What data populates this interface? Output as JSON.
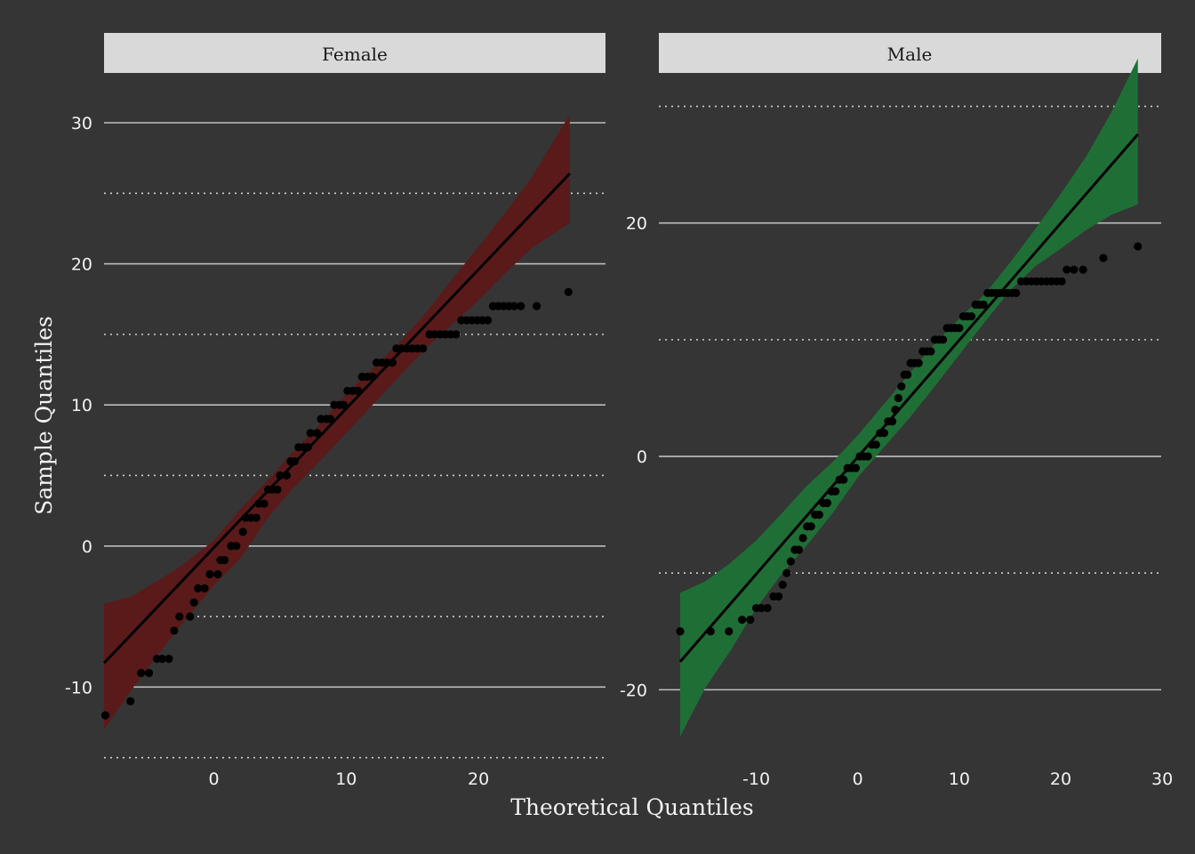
{
  "chart_data": [
    {
      "type": "scatter",
      "panel": "Female",
      "xlabel": "Theoretical Quantiles",
      "ylabel": "Sample Quantiles",
      "xlim": [
        -8.3,
        29.6
      ],
      "ylim": [
        -15.4,
        32.9
      ],
      "x_ticks": [
        0,
        10,
        20
      ],
      "y_ticks_major": [
        -10,
        0,
        10,
        20,
        30
      ],
      "y_ticks_minor": [
        -15,
        -5,
        5,
        15,
        25
      ],
      "band_color": "#5a1a1a",
      "line": {
        "x": [
          -8.3,
          26.9
        ],
        "y": [
          -8.3,
          26.4
        ]
      },
      "band_x": [
        -8.3,
        -6.3,
        -4.3,
        -2.3,
        0,
        2,
        4,
        6,
        8,
        10,
        12,
        14,
        16,
        18,
        20,
        22,
        24,
        26.9
      ],
      "band_lower": [
        -13,
        -10.3,
        -7.8,
        -5.4,
        -2.8,
        -0.9,
        1.9,
        4.1,
        6.0,
        8.0,
        10.0,
        12.0,
        14.0,
        15.7,
        17.4,
        19.3,
        21.1,
        22.9
      ],
      "band_upper": [
        -4.1,
        -3.6,
        -2.5,
        -1.3,
        0.4,
        2.6,
        4.6,
        6.7,
        8.6,
        10.8,
        12.6,
        14.4,
        16.5,
        18.9,
        21.2,
        23.6,
        26.1,
        30.6
      ],
      "points": [
        [
          -8.2,
          -12
        ],
        [
          -6.3,
          -11
        ],
        [
          -5.5,
          -9
        ],
        [
          -4.9,
          -9
        ],
        [
          -4.3,
          -8
        ],
        [
          -3.9,
          -8
        ],
        [
          -3.4,
          -8
        ],
        [
          -3,
          -6
        ],
        [
          -2.6,
          -5
        ],
        [
          -1.8,
          -5
        ],
        [
          -1.5,
          -4
        ],
        [
          -1.2,
          -3
        ],
        [
          -0.7,
          -3
        ],
        [
          -0.3,
          -2
        ],
        [
          0.3,
          -2
        ],
        [
          0.5,
          -1
        ],
        [
          0.8,
          -1
        ],
        [
          1.3,
          0
        ],
        [
          1.7,
          0
        ],
        [
          2.2,
          1
        ],
        [
          2.4,
          2
        ],
        [
          2.8,
          2
        ],
        [
          3.2,
          2
        ],
        [
          3.4,
          3
        ],
        [
          3.8,
          3
        ],
        [
          4.1,
          4
        ],
        [
          4.4,
          4
        ],
        [
          4.8,
          4
        ],
        [
          5,
          5
        ],
        [
          5.5,
          5
        ],
        [
          5.8,
          6
        ],
        [
          6.1,
          6
        ],
        [
          6.4,
          7
        ],
        [
          6.8,
          7
        ],
        [
          7.1,
          7
        ],
        [
          7.3,
          8
        ],
        [
          7.8,
          8
        ],
        [
          8.1,
          9
        ],
        [
          8.5,
          9
        ],
        [
          8.8,
          9
        ],
        [
          9.1,
          10
        ],
        [
          9.5,
          10
        ],
        [
          9.8,
          10
        ],
        [
          10.1,
          11
        ],
        [
          10.5,
          11
        ],
        [
          10.9,
          11
        ],
        [
          11.2,
          12
        ],
        [
          11.6,
          12
        ],
        [
          12,
          12
        ],
        [
          12.3,
          13
        ],
        [
          12.7,
          13
        ],
        [
          13.1,
          13
        ],
        [
          13.5,
          13
        ],
        [
          13.8,
          14
        ],
        [
          14.2,
          14
        ],
        [
          14.6,
          14
        ],
        [
          15,
          14
        ],
        [
          15.4,
          14
        ],
        [
          15.8,
          14
        ],
        [
          16.3,
          15
        ],
        [
          16.7,
          15
        ],
        [
          17.1,
          15
        ],
        [
          17.5,
          15
        ],
        [
          17.9,
          15
        ],
        [
          18.3,
          15
        ],
        [
          18.7,
          16
        ],
        [
          19.1,
          16
        ],
        [
          19.5,
          16
        ],
        [
          19.9,
          16
        ],
        [
          20.3,
          16
        ],
        [
          20.7,
          16
        ],
        [
          21.1,
          17
        ],
        [
          21.5,
          17
        ],
        [
          21.9,
          17
        ],
        [
          22.3,
          17
        ],
        [
          22.7,
          17
        ],
        [
          23.2,
          17
        ],
        [
          24.4,
          17
        ],
        [
          26.8,
          18
        ]
      ]
    },
    {
      "type": "scatter",
      "panel": "Male",
      "xlabel": "Theoretical Quantiles",
      "ylabel": "Sample Quantiles",
      "xlim": [
        -19.6,
        29.9
      ],
      "ylim": [
        -26.3,
        32.1
      ],
      "x_ticks": [
        -10,
        0,
        10,
        20,
        30
      ],
      "y_ticks_major": [
        -20,
        0,
        20
      ],
      "y_ticks_minor": [
        -10,
        10,
        30
      ],
      "band_color": "#1f6e36",
      "line": {
        "x": [
          -17.5,
          27.6
        ],
        "y": [
          -17.6,
          27.6
        ]
      },
      "band_x": [
        -17.5,
        -15,
        -12.5,
        -10,
        -7.5,
        -5,
        -2.5,
        0,
        2.5,
        5,
        7.5,
        10,
        12.5,
        15,
        17.5,
        20,
        22.5,
        25,
        27.6
      ],
      "band_lower": [
        -24,
        -19.8,
        -16.6,
        -13.0,
        -10.1,
        -7.6,
        -4.9,
        -1.8,
        0.7,
        3.2,
        5.9,
        8.7,
        11.5,
        14.2,
        16.3,
        17.8,
        19.4,
        20.7,
        21.6
      ],
      "band_upper": [
        -11.7,
        -10.7,
        -9.1,
        -7.2,
        -4.9,
        -2.5,
        -0.5,
        1.8,
        4.4,
        7.0,
        9.6,
        11.8,
        13.9,
        16.6,
        19.5,
        22.5,
        25.7,
        29.5,
        34.1
      ],
      "points": [
        [
          -17.5,
          -15
        ],
        [
          -14.5,
          -15
        ],
        [
          -12.7,
          -15
        ],
        [
          -11.4,
          -14
        ],
        [
          -10.6,
          -14
        ],
        [
          -10,
          -13
        ],
        [
          -9.5,
          -13
        ],
        [
          -8.9,
          -13
        ],
        [
          -8.3,
          -12
        ],
        [
          -7.8,
          -12
        ],
        [
          -7.4,
          -11
        ],
        [
          -7,
          -10
        ],
        [
          -6.6,
          -9
        ],
        [
          -6.2,
          -8
        ],
        [
          -5.8,
          -8
        ],
        [
          -5.4,
          -7
        ],
        [
          -5,
          -6
        ],
        [
          -4.6,
          -6
        ],
        [
          -4.2,
          -5
        ],
        [
          -3.8,
          -5
        ],
        [
          -3.4,
          -4
        ],
        [
          -3,
          -4
        ],
        [
          -2.6,
          -3
        ],
        [
          -2.2,
          -3
        ],
        [
          -1.8,
          -2
        ],
        [
          -1.4,
          -2
        ],
        [
          -1,
          -1
        ],
        [
          -0.6,
          -1
        ],
        [
          -0.2,
          -1
        ],
        [
          0.2,
          0
        ],
        [
          0.6,
          0
        ],
        [
          1,
          0
        ],
        [
          1.4,
          1
        ],
        [
          1.8,
          1
        ],
        [
          2.2,
          2
        ],
        [
          2.6,
          2
        ],
        [
          3,
          3
        ],
        [
          3.4,
          3
        ],
        [
          3.7,
          4
        ],
        [
          4,
          5
        ],
        [
          4.3,
          6
        ],
        [
          4.6,
          7
        ],
        [
          4.9,
          7
        ],
        [
          5.2,
          8
        ],
        [
          5.6,
          8
        ],
        [
          6,
          8
        ],
        [
          6.4,
          9
        ],
        [
          6.8,
          9
        ],
        [
          7.2,
          9
        ],
        [
          7.6,
          10
        ],
        [
          8,
          10
        ],
        [
          8.4,
          10
        ],
        [
          8.8,
          11
        ],
        [
          9.2,
          11
        ],
        [
          9.6,
          11
        ],
        [
          10,
          11
        ],
        [
          10.4,
          12
        ],
        [
          10.8,
          12
        ],
        [
          11.2,
          12
        ],
        [
          11.6,
          13
        ],
        [
          12,
          13
        ],
        [
          12.4,
          13
        ],
        [
          12.8,
          14
        ],
        [
          13.2,
          14
        ],
        [
          13.6,
          14
        ],
        [
          14,
          14
        ],
        [
          14.4,
          14
        ],
        [
          14.8,
          14
        ],
        [
          15.2,
          14
        ],
        [
          15.6,
          14
        ],
        [
          16.1,
          15
        ],
        [
          16.6,
          15
        ],
        [
          17.1,
          15
        ],
        [
          17.6,
          15
        ],
        [
          18.1,
          15
        ],
        [
          18.6,
          15
        ],
        [
          19.1,
          15
        ],
        [
          19.6,
          15
        ],
        [
          20.1,
          15
        ],
        [
          20.6,
          16
        ],
        [
          21.3,
          16
        ],
        [
          22.2,
          16
        ],
        [
          24.2,
          17
        ],
        [
          27.6,
          18
        ]
      ]
    }
  ]
}
